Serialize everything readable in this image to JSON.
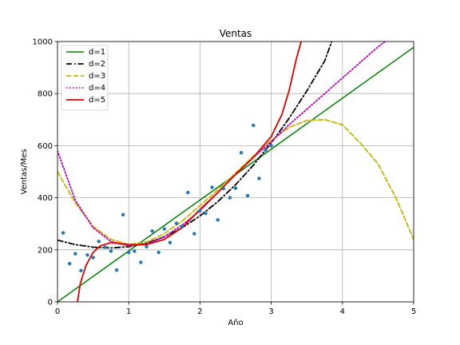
{
  "chart_data": {
    "type": "line",
    "title": "Ventas",
    "xlabel": "Año",
    "ylabel": "Ventas/Mes",
    "xlim": [
      0,
      5
    ],
    "ylim": [
      0,
      1000
    ],
    "xticks": [
      "0",
      "1",
      "2",
      "3",
      "4",
      "5"
    ],
    "yticks": [
      "0",
      "200",
      "400",
      "600",
      "800",
      "1000"
    ],
    "xtick_values": [
      0,
      1,
      2,
      3,
      4,
      5
    ],
    "ytick_values": [
      0,
      200,
      400,
      600,
      800,
      1000
    ],
    "grid": true,
    "legend_position": "top-left",
    "scatter": {
      "color": "#1f77b4",
      "x": [
        0.08,
        0.17,
        0.25,
        0.33,
        0.42,
        0.5,
        0.58,
        0.67,
        0.75,
        0.83,
        0.92,
        1.0,
        1.08,
        1.17,
        1.25,
        1.33,
        1.42,
        1.5,
        1.58,
        1.67,
        1.75,
        1.83,
        1.92,
        2.0,
        2.08,
        2.17,
        2.25,
        2.33,
        2.42,
        2.5,
        2.58,
        2.67,
        2.75,
        2.83,
        2.92,
        3.0
      ],
      "y": [
        265,
        147,
        185,
        120,
        180,
        170,
        232,
        210,
        195,
        122,
        335,
        190,
        195,
        152,
        212,
        272,
        190,
        280,
        228,
        302,
        290,
        420,
        262,
        350,
        340,
        440,
        315,
        435,
        400,
        437,
        573,
        408,
        678,
        474,
        583,
        600
      ]
    },
    "series": [
      {
        "name": "d=1",
        "color": "#008000",
        "dash": "solid",
        "width": 1.5,
        "x": [
          0,
          5
        ],
        "y": [
          0,
          978
        ]
      },
      {
        "name": "d=2",
        "color": "#000000",
        "dash": "dashdot",
        "width": 1.8,
        "x": [
          0,
          0.25,
          0.5,
          0.75,
          1.0,
          1.25,
          1.5,
          1.75,
          2.0,
          2.25,
          2.5,
          2.75,
          3.0,
          3.25,
          3.5,
          3.75,
          3.85
        ],
        "y": [
          237,
          220,
          210,
          207,
          212,
          225,
          250,
          285,
          330,
          385,
          450,
          525,
          610,
          705,
          810,
          925,
          1000
        ]
      },
      {
        "name": "d=3",
        "color": "#c8b400",
        "dash": "dashed",
        "width": 1.8,
        "x": [
          0,
          0.25,
          0.5,
          0.75,
          1.0,
          1.25,
          1.5,
          1.75,
          2.0,
          2.25,
          2.5,
          2.75,
          3.0,
          3.25,
          3.5,
          3.75,
          4.0,
          4.25,
          4.5,
          4.75,
          5.0
        ],
        "y": [
          500,
          380,
          290,
          240,
          220,
          230,
          262,
          310,
          370,
          430,
          495,
          560,
          620,
          670,
          697,
          700,
          680,
          610,
          530,
          400,
          240
        ]
      },
      {
        "name": "d=4",
        "color": "#bf00bf",
        "dash": "dotted",
        "width": 1.8,
        "x": [
          0,
          0.25,
          0.5,
          0.75,
          1.0,
          1.25,
          1.5,
          1.75,
          2.0,
          2.25,
          2.5,
          2.75,
          3.0,
          3.25,
          3.5,
          3.75,
          4.0,
          4.25,
          4.5,
          4.6
        ],
        "y": [
          580,
          390,
          285,
          232,
          215,
          222,
          250,
          295,
          350,
          420,
          490,
          555,
          615,
          680,
          740,
          800,
          860,
          920,
          980,
          1000
        ]
      },
      {
        "name": "d=5",
        "color": "#e00000",
        "dash": "solid",
        "width": 1.8,
        "x": [
          0.28,
          0.32,
          0.4,
          0.5,
          0.6,
          0.75,
          1.0,
          1.25,
          1.5,
          1.75,
          2.0,
          2.25,
          2.5,
          2.75,
          3.0,
          3.15,
          3.25,
          3.35,
          3.42
        ],
        "y": [
          0,
          70,
          140,
          190,
          215,
          228,
          220,
          220,
          240,
          285,
          355,
          420,
          490,
          555,
          635,
          720,
          810,
          930,
          1000
        ]
      }
    ]
  }
}
